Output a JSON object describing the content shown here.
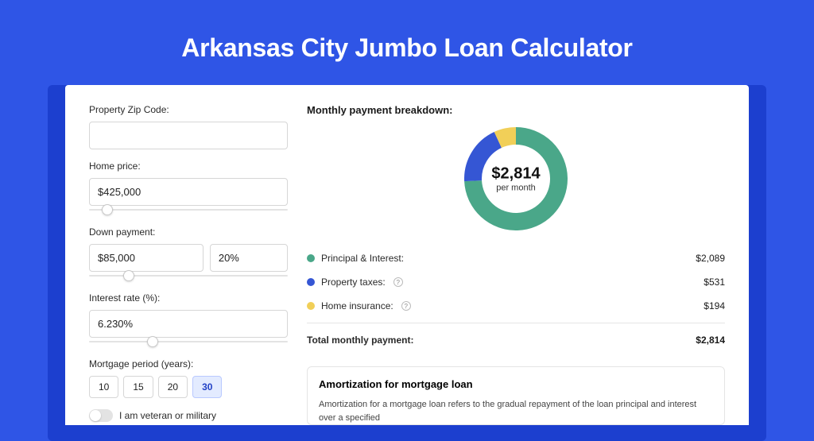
{
  "title": "Arkansas City Jumbo Loan Calculator",
  "form": {
    "zip_label": "Property Zip Code:",
    "zip_value": "",
    "price_label": "Home price:",
    "price_value": "$425,000",
    "price_slider_pct": 9,
    "down_label": "Down payment:",
    "down_value": "$85,000",
    "down_pct": "20%",
    "down_slider_pct": 20,
    "rate_label": "Interest rate (%):",
    "rate_value": "6.230%",
    "rate_slider_pct": 32,
    "period_label": "Mortgage period (years):",
    "period_options": [
      "10",
      "15",
      "20",
      "30"
    ],
    "period_selected": "30",
    "veteran_label": "I am veteran or military",
    "veteran_on": false
  },
  "chart": {
    "title": "Monthly payment breakdown:",
    "center_value": "$2,814",
    "center_sub": "per month",
    "size": 130,
    "thickness": 22,
    "slices": [
      {
        "label": "Principal & Interest:",
        "amount": "$2,089",
        "value": 2089,
        "color": "#4aa789",
        "has_info": false
      },
      {
        "label": "Property taxes:",
        "amount": "$531",
        "value": 531,
        "color": "#3556d4",
        "has_info": true
      },
      {
        "label": "Home insurance:",
        "amount": "$194",
        "value": 194,
        "color": "#f1cf58",
        "has_info": true
      }
    ],
    "total_label": "Total monthly payment:",
    "total_amount": "$2,814"
  },
  "amortization": {
    "title": "Amortization for mortgage loan",
    "body": "Amortization for a mortgage loan refers to the gradual repayment of the loan principal and interest over a specified"
  }
}
